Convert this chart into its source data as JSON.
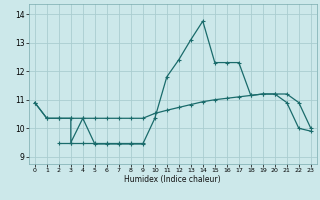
{
  "xlabel": "Humidex (Indice chaleur)",
  "bg_color": "#cce8ea",
  "grid_color": "#aacdd0",
  "line_color": "#1a6b6b",
  "xlim": [
    -0.5,
    23.5
  ],
  "ylim": [
    8.75,
    14.35
  ],
  "yticks": [
    9,
    10,
    11,
    12,
    13,
    14
  ],
  "xticks": [
    0,
    1,
    2,
    3,
    4,
    5,
    6,
    7,
    8,
    9,
    10,
    11,
    12,
    13,
    14,
    15,
    16,
    17,
    18,
    19,
    20,
    21,
    22,
    23
  ],
  "line1_x": [
    0,
    1,
    2,
    3,
    3,
    4,
    5,
    6,
    7,
    8,
    9,
    10,
    11,
    12,
    13,
    14,
    15,
    16,
    17,
    18,
    19,
    20,
    21,
    22,
    23
  ],
  "line1_y": [
    10.9,
    10.35,
    10.35,
    10.35,
    9.5,
    10.35,
    9.45,
    9.45,
    9.45,
    9.45,
    9.45,
    10.35,
    11.8,
    12.4,
    13.1,
    13.75,
    12.3,
    12.3,
    12.3,
    11.15,
    11.2,
    11.2,
    10.9,
    10.0,
    9.9
  ],
  "line2_x": [
    0,
    1,
    2,
    3,
    4,
    5,
    6,
    7,
    8,
    9,
    10,
    11,
    12,
    13,
    14,
    15,
    16,
    17,
    18,
    19,
    20,
    21,
    22,
    23
  ],
  "line2_y": [
    10.9,
    10.35,
    10.35,
    10.35,
    10.35,
    10.35,
    10.35,
    10.35,
    10.35,
    10.35,
    10.52,
    10.63,
    10.73,
    10.83,
    10.93,
    11.0,
    11.05,
    11.1,
    11.15,
    11.2,
    11.2,
    11.2,
    10.9,
    10.0
  ],
  "line3_x": [
    2,
    3,
    4,
    5,
    6,
    7,
    8,
    9
  ],
  "line3_y": [
    9.5,
    9.5,
    9.5,
    9.5,
    9.5,
    9.5,
    9.5,
    9.5
  ]
}
